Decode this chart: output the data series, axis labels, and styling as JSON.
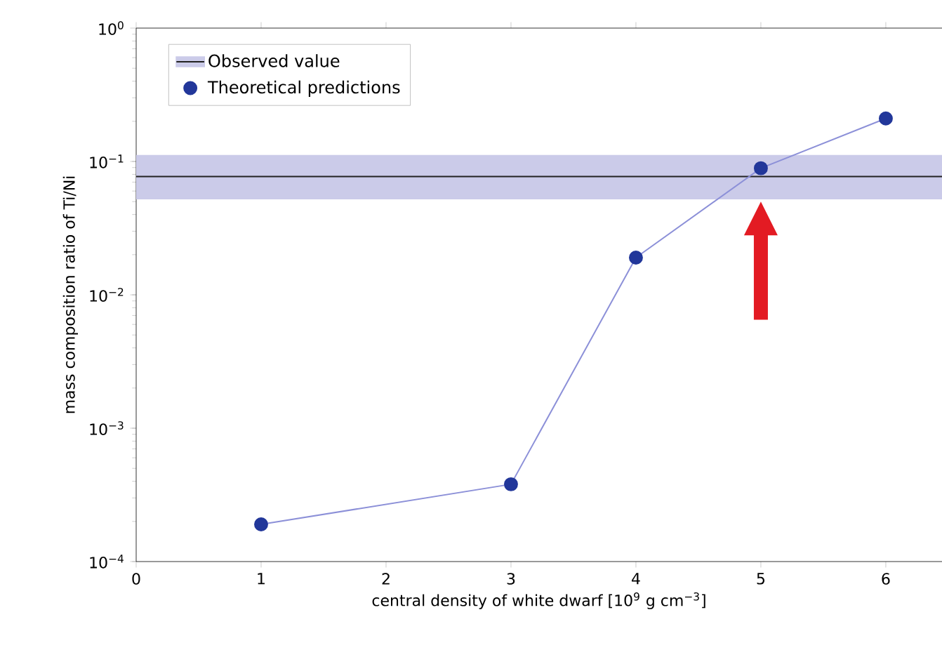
{
  "chart_data": {
    "type": "line",
    "xlabel": "central density of white dwarf [10$^{9}$ g cm$^{−3}$]",
    "ylabel": "mass composition ratio of Ti/Ni",
    "x": [
      1,
      3,
      4,
      5,
      6
    ],
    "series": [
      {
        "name": "Theoretical predictions",
        "color": "#22379a",
        "values": [
          0.00019,
          0.00038,
          0.019,
          0.089,
          0.21
        ]
      }
    ],
    "xlim": [
      0,
      6.45
    ],
    "xticks": [
      0,
      1,
      2,
      3,
      4,
      5,
      6
    ],
    "ylim": [
      0.0001,
      1
    ],
    "log": true,
    "yticks": [
      {
        "value": 0.0001,
        "label": "10$^{−4}$"
      },
      {
        "value": 0.001,
        "label": "10$^{−3}$"
      },
      {
        "value": 0.01,
        "label": "10$^{−2}$"
      },
      {
        "value": 0.1,
        "label": "10$^{−1}$"
      },
      {
        "value": 1,
        "label": "10$^{0}$"
      }
    ],
    "ref_lines": [
      {
        "axis": "y",
        "value": 0.077,
        "label": "Observed value",
        "color": "#222222"
      }
    ],
    "bands": [
      {
        "axis": "y",
        "from": 0.052,
        "to": 0.112,
        "color": "#cbcbe9"
      }
    ],
    "marker": "circle",
    "line_style": "solid",
    "grid": false,
    "legend": "top left"
  }
}
